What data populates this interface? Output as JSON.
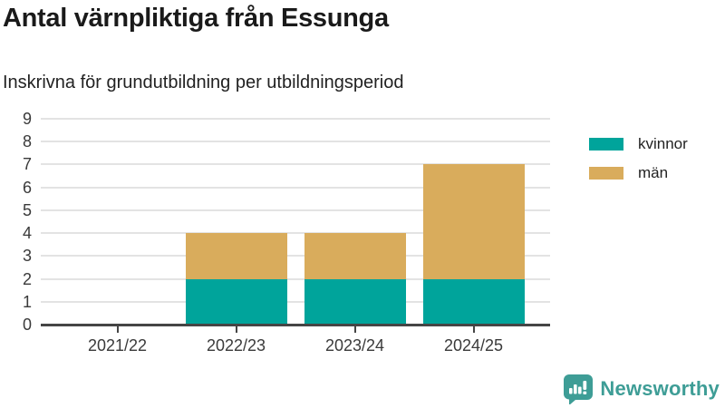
{
  "header": {
    "title": "Antal värnpliktiga från Essunga",
    "subtitle": "Inskrivna för grundutbildning per utbildningsperiod"
  },
  "colors": {
    "kvinnor": "#00a49b",
    "man": "#d9ac5c",
    "axis": "#454545",
    "grid": "#e3e3e3",
    "brand": "#3e9d96"
  },
  "legend": {
    "items": [
      {
        "label": "kvinnor",
        "color": "#00a49b"
      },
      {
        "label": "män",
        "color": "#d9ac5c"
      }
    ]
  },
  "footer": {
    "brand": "Newsworthy",
    "logo_icon": "speech-bubble-bar-chart-icon"
  },
  "chart_data": {
    "type": "bar",
    "stacked": true,
    "title": "Antal värnpliktiga från Essunga",
    "subtitle": "Inskrivna för grundutbildning per utbildningsperiod",
    "categories": [
      "2021/22",
      "2022/23",
      "2023/24",
      "2024/25"
    ],
    "series": [
      {
        "name": "kvinnor",
        "color": "#00a49b",
        "values": [
          0,
          2,
          2,
          2
        ]
      },
      {
        "name": "män",
        "color": "#d9ac5c",
        "values": [
          0,
          2,
          2,
          5
        ]
      }
    ],
    "totals": [
      0,
      4,
      4,
      7
    ],
    "xlabel": "",
    "ylabel": "",
    "ylim": [
      0,
      9
    ],
    "yticks": [
      0,
      1,
      2,
      3,
      4,
      5,
      6,
      7,
      8,
      9
    ],
    "grid": true,
    "legend_position": "right"
  }
}
